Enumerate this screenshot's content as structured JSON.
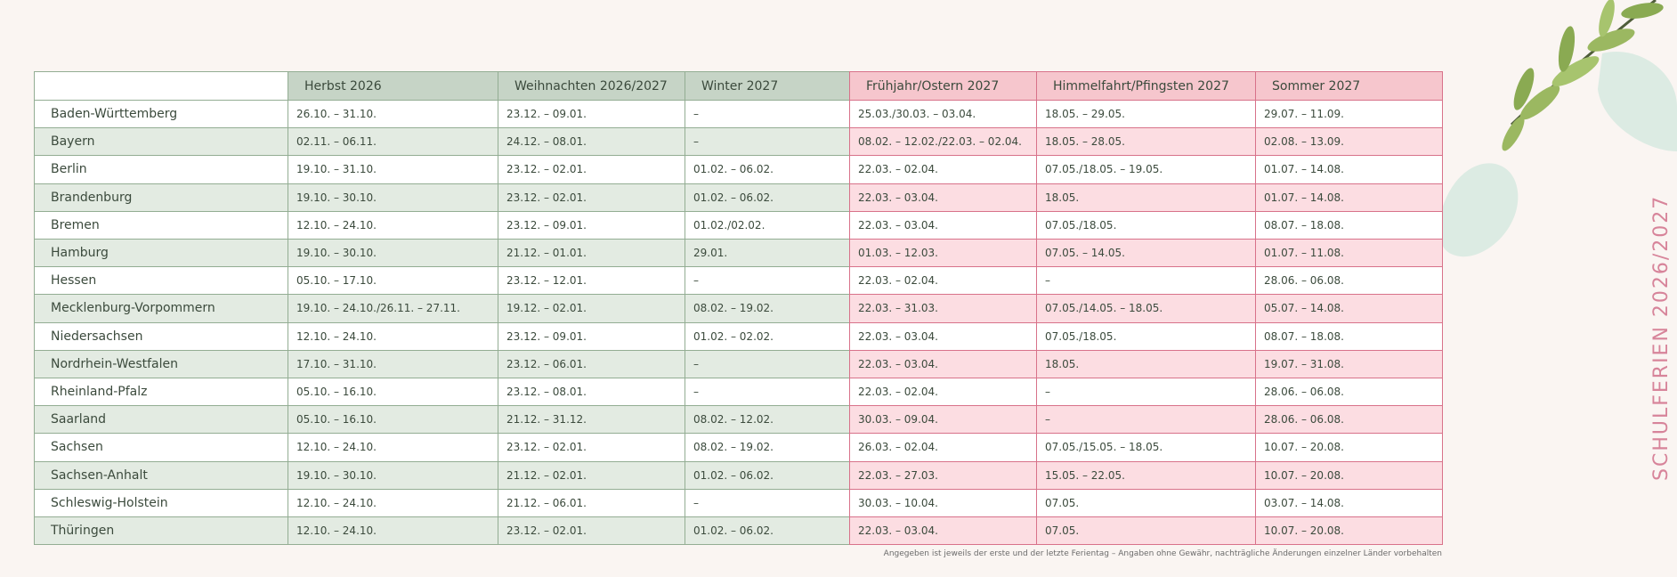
{
  "table": {
    "columns": [
      "Herbst 2026",
      "Weihnachten 2026/2027",
      "Winter 2027",
      "Frühjahr/Ostern 2027",
      "Himmelfahrt/Pfingsten 2027",
      "Sommer 2027"
    ],
    "rows": [
      [
        "Baden-Württemberg",
        "26.10. – 31.10.",
        "23.12. – 09.01.",
        "–",
        "25.03./30.03. – 03.04.",
        "18.05. – 29.05.",
        "29.07. – 11.09."
      ],
      [
        "Bayern",
        "02.11. – 06.11.",
        "24.12. – 08.01.",
        "–",
        "08.02. – 12.02./22.03. – 02.04.",
        "18.05. – 28.05.",
        "02.08. – 13.09."
      ],
      [
        "Berlin",
        "19.10. – 31.10.",
        "23.12. – 02.01.",
        "01.02. – 06.02.",
        "22.03. – 02.04.",
        "07.05./18.05. – 19.05.",
        "01.07. – 14.08."
      ],
      [
        "Brandenburg",
        "19.10. – 30.10.",
        "23.12. – 02.01.",
        "01.02. – 06.02.",
        "22.03. – 03.04.",
        "18.05.",
        "01.07. – 14.08."
      ],
      [
        "Bremen",
        "12.10. – 24.10.",
        "23.12. – 09.01.",
        "01.02./02.02.",
        "22.03. – 03.04.",
        "07.05./18.05.",
        "08.07. – 18.08."
      ],
      [
        "Hamburg",
        "19.10. – 30.10.",
        "21.12. – 01.01.",
        "29.01.",
        "01.03. – 12.03.",
        "07.05. – 14.05.",
        "01.07. – 11.08."
      ],
      [
        "Hessen",
        "05.10. – 17.10.",
        "23.12. – 12.01.",
        "–",
        "22.03. – 02.04.",
        "–",
        "28.06. – 06.08."
      ],
      [
        "Mecklenburg-Vorpommern",
        "19.10. – 24.10./26.11. – 27.11.",
        "19.12. – 02.01.",
        "08.02. – 19.02.",
        "22.03. – 31.03.",
        "07.05./14.05. – 18.05.",
        "05.07. – 14.08."
      ],
      [
        "Niedersachsen",
        "12.10. – 24.10.",
        "23.12. – 09.01.",
        "01.02. – 02.02.",
        "22.03. – 03.04.",
        "07.05./18.05.",
        "08.07. – 18.08."
      ],
      [
        "Nordrhein-Westfalen",
        "17.10. – 31.10.",
        "23.12. – 06.01.",
        "–",
        "22.03. – 03.04.",
        "18.05.",
        "19.07. – 31.08."
      ],
      [
        "Rheinland-Pfalz",
        "05.10. – 16.10.",
        "23.12. – 08.01.",
        "–",
        "22.03. – 02.04.",
        "–",
        "28.06. – 06.08."
      ],
      [
        "Saarland",
        "05.10. – 16.10.",
        "21.12. – 31.12.",
        "08.02. – 12.02.",
        "30.03. – 09.04.",
        "–",
        "28.06. – 06.08."
      ],
      [
        "Sachsen",
        "12.10. – 24.10.",
        "23.12. – 02.01.",
        "08.02. – 19.02.",
        "26.03. – 02.04.",
        "07.05./15.05. – 18.05.",
        "10.07. – 20.08."
      ],
      [
        "Sachsen-Anhalt",
        "19.10. – 30.10.",
        "21.12. – 02.01.",
        "01.02. – 06.02.",
        "22.03. – 27.03.",
        "15.05. – 22.05.",
        "10.07. – 20.08."
      ],
      [
        "Schleswig-Holstein",
        "12.10. – 24.10.",
        "21.12. – 06.01.",
        "–",
        "30.03. – 10.04.",
        "07.05.",
        "03.07. – 14.08."
      ],
      [
        "Thüringen",
        "12.10. – 24.10.",
        "23.12. – 02.01.",
        "01.02. – 06.02.",
        "22.03. – 03.04.",
        "07.05.",
        "10.07. – 20.08."
      ]
    ]
  },
  "footnote": "Angegeben ist jeweils der erste und der letzte Ferientag – Angaben ohne Gewähr, nachträgliche Änderungen einzelner Länder vorbehalten",
  "side_title": "SCHULFERIEN 2026/2027"
}
